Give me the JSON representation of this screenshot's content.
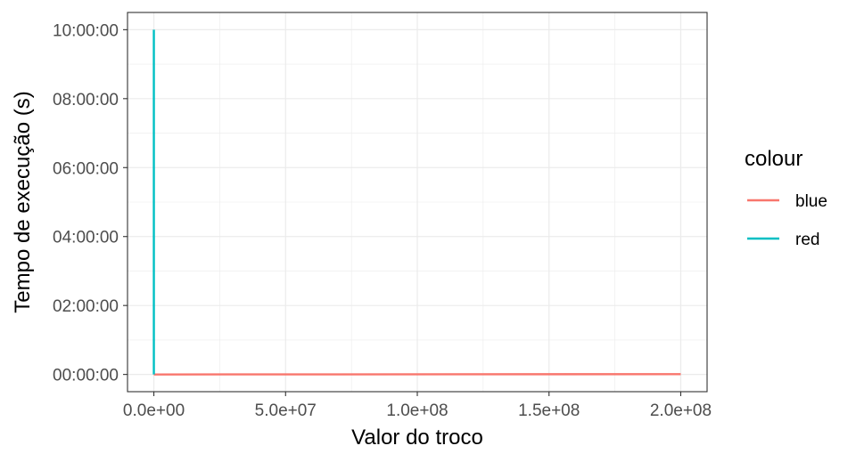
{
  "chart_data": {
    "type": "line",
    "title": "",
    "xlabel": "Valor do troco",
    "ylabel": "Tempo de execução (s)",
    "xlim": [
      -10000000,
      210000000
    ],
    "ylim": [
      -1800,
      37800
    ],
    "x_ticks": [
      0,
      50000000,
      100000000,
      150000000,
      200000000
    ],
    "x_tick_labels": [
      "0.0e+00",
      "5.0e+07",
      "1.0e+08",
      "1.5e+08",
      "2.0e+08"
    ],
    "y_ticks": [
      0,
      7200,
      14400,
      21600,
      28800,
      36000
    ],
    "y_tick_labels": [
      "00:00:00",
      "02:00:00",
      "04:00:00",
      "06:00:00",
      "08:00:00",
      "10:00:00"
    ],
    "grid": true,
    "legend": {
      "title": "colour",
      "position": "right"
    },
    "series": [
      {
        "name": "blue",
        "color": "#F8766D",
        "x": [
          0,
          200000000
        ],
        "y": [
          0,
          30
        ]
      },
      {
        "name": "red",
        "color": "#00BFC4",
        "x": [
          0,
          0
        ],
        "y": [
          0,
          36000
        ]
      }
    ]
  }
}
